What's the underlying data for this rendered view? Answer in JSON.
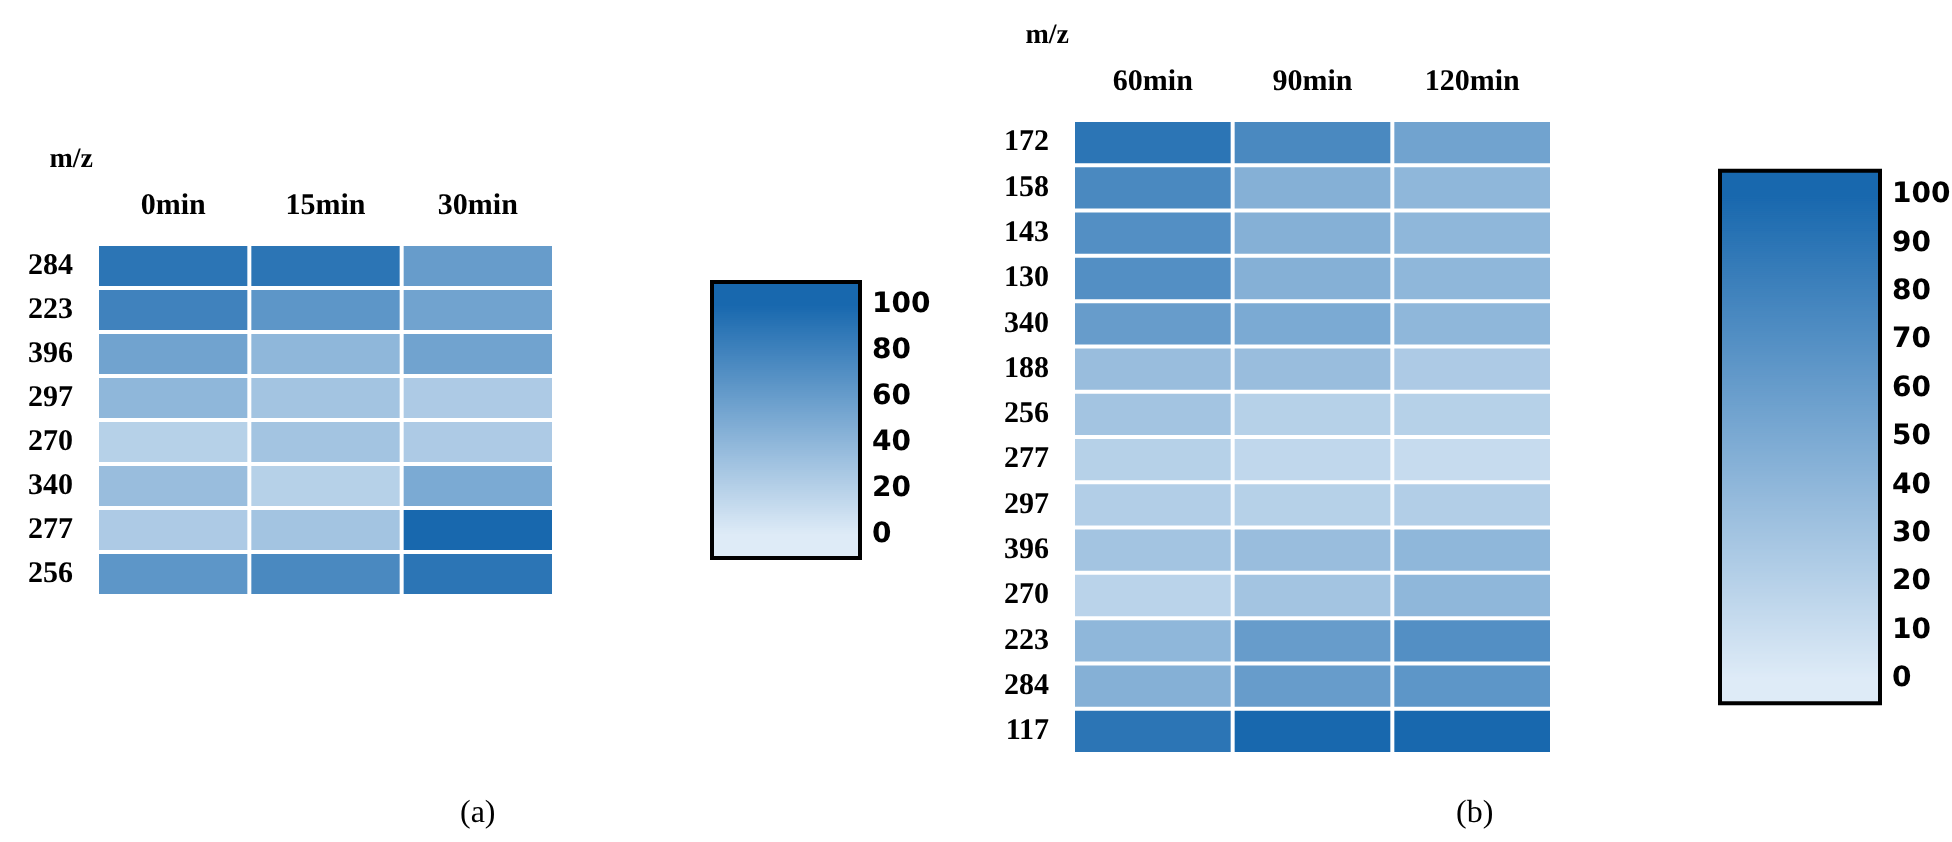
{
  "chart_data": [
    {
      "type": "heatmap",
      "ylabel": "m/z",
      "categories": [
        "0min",
        "15min",
        "30min"
      ],
      "y_categories": [
        "284",
        "223",
        "396",
        "297",
        "270",
        "340",
        "277",
        "256"
      ],
      "cells": [
        [
          90,
          90,
          60
        ],
        [
          80,
          65,
          55
        ],
        [
          55,
          40,
          55
        ],
        [
          40,
          30,
          25
        ],
        [
          20,
          30,
          25
        ],
        [
          35,
          20,
          50
        ],
        [
          25,
          30,
          100
        ],
        [
          65,
          75,
          90
        ]
      ],
      "clim": [
        0,
        100
      ],
      "cticks": [
        0,
        20,
        40,
        60,
        80,
        100
      ],
      "annotations": [
        "(a)"
      ]
    },
    {
      "type": "heatmap",
      "ylabel": "m/z",
      "categories": [
        "60min",
        "90min",
        "120min"
      ],
      "y_categories": [
        "172",
        "158",
        "143",
        "130",
        "340",
        "188",
        "256",
        "277",
        "297",
        "396",
        "270",
        "223",
        "284",
        "117"
      ],
      "cells": [
        [
          90,
          75,
          55
        ],
        [
          75,
          45,
          40
        ],
        [
          70,
          45,
          40
        ],
        [
          70,
          45,
          40
        ],
        [
          60,
          50,
          40
        ],
        [
          35,
          35,
          25
        ],
        [
          30,
          20,
          20
        ],
        [
          20,
          15,
          12
        ],
        [
          22,
          20,
          22
        ],
        [
          30,
          35,
          40
        ],
        [
          18,
          30,
          40
        ],
        [
          40,
          60,
          70
        ],
        [
          45,
          60,
          65
        ],
        [
          90,
          100,
          100
        ]
      ],
      "clim": [
        0,
        100
      ],
      "cticks": [
        0,
        10,
        20,
        30,
        40,
        50,
        60,
        70,
        80,
        90,
        100
      ],
      "annotations": [
        "(b)"
      ]
    }
  ]
}
